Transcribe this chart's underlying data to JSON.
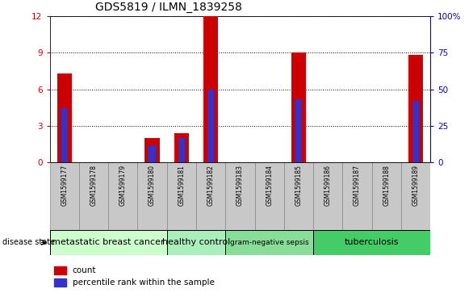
{
  "title": "GDS5819 / ILMN_1839258",
  "samples": [
    "GSM1599177",
    "GSM1599178",
    "GSM1599179",
    "GSM1599180",
    "GSM1599181",
    "GSM1599182",
    "GSM1599183",
    "GSM1599184",
    "GSM1599185",
    "GSM1599186",
    "GSM1599187",
    "GSM1599188",
    "GSM1599189"
  ],
  "counts": [
    7.3,
    0,
    0,
    2.0,
    2.4,
    12.0,
    0,
    0,
    9.0,
    0,
    0,
    0,
    8.8
  ],
  "percentile_ranks": [
    37,
    0,
    0,
    12,
    17,
    50,
    0,
    0,
    43,
    0,
    0,
    0,
    42
  ],
  "ylim_left": [
    0,
    12
  ],
  "ylim_right": [
    0,
    100
  ],
  "yticks_left": [
    0,
    3,
    6,
    9,
    12
  ],
  "yticks_right": [
    0,
    25,
    50,
    75,
    100
  ],
  "ytick_labels_right": [
    "0",
    "25",
    "50",
    "75",
    "100%"
  ],
  "bar_color": "#cc0000",
  "percentile_color": "#3333cc",
  "bar_width": 0.5,
  "disease_groups": [
    {
      "label": "metastatic breast cancer",
      "start": 0,
      "end": 4
    },
    {
      "label": "healthy control",
      "start": 4,
      "end": 6
    },
    {
      "label": "gram-negative sepsis",
      "start": 6,
      "end": 9
    },
    {
      "label": "tuberculosis",
      "start": 9,
      "end": 13
    }
  ],
  "group_colors": [
    "#ccffcc",
    "#aaeebb",
    "#88dd99",
    "#44cc66"
  ],
  "xlabel_disease": "disease state",
  "legend_count_label": "count",
  "legend_percentile_label": "percentile rank within the sample",
  "tick_color_left": "#cc0000",
  "tick_color_right": "#0000cc",
  "xticklabel_bg": "#c8c8c8"
}
